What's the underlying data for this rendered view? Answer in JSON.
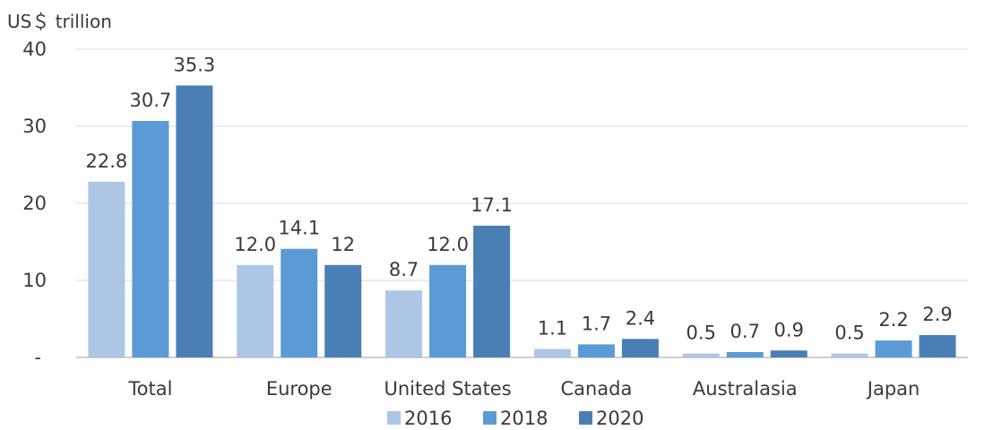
{
  "chart_data": {
    "type": "bar",
    "y_unit_label": "US＄ trillion",
    "categories": [
      "Total",
      "Europe",
      "United States",
      "Canada",
      "Australasia",
      "Japan"
    ],
    "series": [
      {
        "name": "2016",
        "color": "#aec6e6",
        "values": [
          22.8,
          12.0,
          8.7,
          1.1,
          0.5,
          0.5
        ],
        "labels": [
          "22.8",
          "12.0",
          "8.7",
          "1.1",
          "0.5",
          "0.5"
        ]
      },
      {
        "name": "2018",
        "color": "#5b9bd5",
        "values": [
          30.7,
          14.1,
          12.0,
          1.7,
          0.7,
          2.2
        ],
        "labels": [
          "30.7",
          "14.1",
          "12.0",
          "1.7",
          "0.7",
          "2.2"
        ]
      },
      {
        "name": "2020",
        "color": "#4a7fb5",
        "values": [
          35.3,
          12,
          17.1,
          2.4,
          0.9,
          2.9
        ],
        "labels": [
          "35.3",
          "12",
          "17.1",
          "2.4",
          "0.9",
          "2.9"
        ]
      }
    ],
    "y_ticks": [
      {
        "value": 0,
        "label": "-"
      },
      {
        "value": 10,
        "label": "10"
      },
      {
        "value": 20,
        "label": "20"
      },
      {
        "value": 30,
        "label": "30"
      },
      {
        "value": 40,
        "label": "40"
      }
    ],
    "ylim": [
      0,
      40
    ],
    "grid": true,
    "legend_position": "bottom"
  }
}
